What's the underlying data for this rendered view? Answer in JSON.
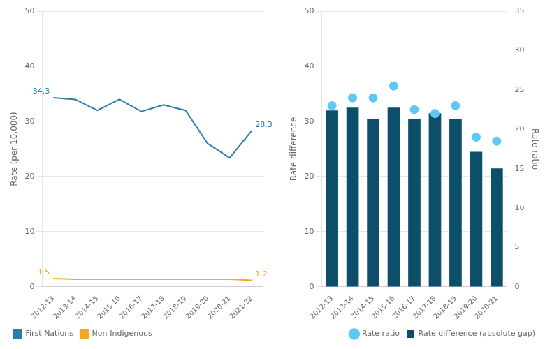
{
  "chart_data": [
    {
      "type": "line",
      "categories": [
        "2012-13",
        "2013-14",
        "2014-15",
        "2015-16",
        "2016-17",
        "2017-18",
        "2018-19",
        "2019-20",
        "2020-21",
        "2021-22"
      ],
      "series": [
        {
          "name": "First Nations",
          "color": "#2b7bac",
          "values": [
            34.3,
            34.0,
            32.0,
            34.0,
            31.8,
            33.0,
            32.0,
            26.0,
            23.4,
            28.3
          ]
        },
        {
          "name": "Non-Indigenous",
          "color": "#f5a623",
          "values": [
            1.5,
            1.4,
            1.4,
            1.4,
            1.4,
            1.4,
            1.4,
            1.4,
            1.4,
            1.2
          ]
        }
      ],
      "y_label": "Rate (per 10,000)",
      "ylim": [
        0,
        50
      ],
      "yticks": [
        0,
        10,
        20,
        30,
        40,
        50
      ],
      "grid": true,
      "legend": "lower left",
      "annotations": [
        {
          "text": "34.3",
          "x": "2012-13",
          "y": 34.3,
          "series": "First Nations"
        },
        {
          "text": "28.3",
          "x": "2021-22",
          "y": 28.3,
          "series": "First Nations"
        },
        {
          "text": "1.5",
          "x": "2012-13",
          "y": 1.5,
          "series": "Non-Indigenous"
        },
        {
          "text": "1.2",
          "x": "2021-22",
          "y": 1.2,
          "series": "Non-Indigenous"
        }
      ]
    },
    {
      "type": "bar",
      "categories": [
        "2012-13",
        "2013-14",
        "2014-15",
        "2015-16",
        "2016-17",
        "2017-18",
        "2018-19",
        "2019-20",
        "2020-21"
      ],
      "series": [
        {
          "name": "Rate difference (absolute gap)",
          "type": "bar",
          "color": "#0d4f6b",
          "values": [
            32.0,
            32.5,
            30.5,
            32.5,
            30.5,
            31.5,
            30.5,
            24.5,
            21.5
          ]
        },
        {
          "name": "Rate ratio",
          "type": "scatter",
          "marker": "circle",
          "axis": "y2",
          "color": "#5bc8f5",
          "values": [
            23.0,
            24.0,
            24.0,
            25.5,
            22.5,
            22.0,
            23.0,
            19.0,
            18.5
          ]
        }
      ],
      "y_label": "Rate difference",
      "y2_label": "Rate ratio",
      "ylim": [
        0,
        50
      ],
      "yticks": [
        0,
        10,
        20,
        30,
        40,
        50
      ],
      "y2lim": [
        0,
        35
      ],
      "y2ticks": [
        0,
        5,
        10,
        15,
        20,
        25,
        30,
        35
      ],
      "grid": true,
      "legend": "lower right"
    }
  ]
}
